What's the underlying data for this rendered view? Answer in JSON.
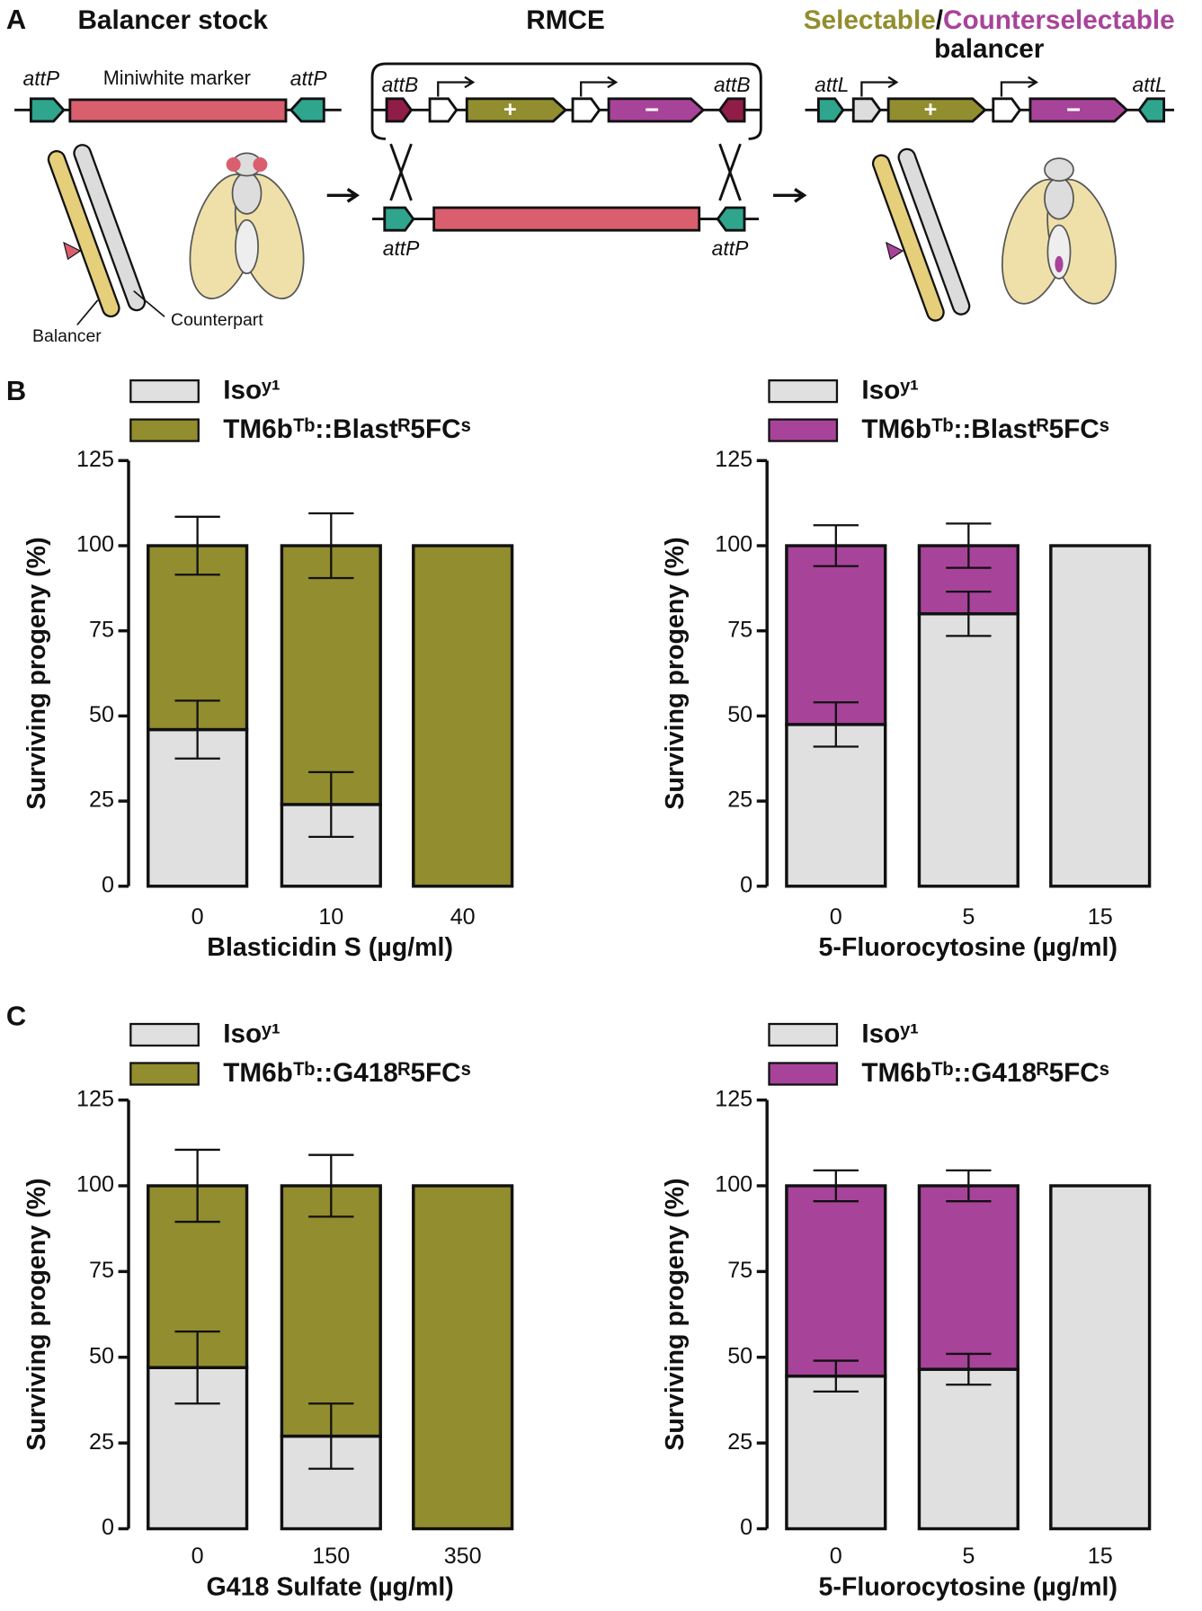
{
  "diagram": {
    "panel": "A",
    "col1_title": "Balancer stock",
    "col2_title": "RMCE",
    "col3_title_a": "Selectable",
    "col3_title_sep": "/",
    "col3_title_b": "Counterselectable",
    "col3_title_c": "balancer",
    "left_attp_1": "attP",
    "left_marker": "Miniwhite marker",
    "left_attp_2": "attP",
    "rmce_attb_1": "attB",
    "rmce_attb_2": "attB",
    "rmce_attp_1": "attP",
    "rmce_attp_2": "attP",
    "plus": "+",
    "minus": "−",
    "right_attl_1": "attL",
    "right_attl_2": "attL",
    "balancer_label": "Balancer",
    "counterpart_label": "Counterpart"
  },
  "chart_data": [
    {
      "type": "bar",
      "panel": "B",
      "xlabel": "Blasticidin S (µg/ml)",
      "ylabel": "Surviving progeny (%)",
      "categories": [
        "0",
        "10",
        "40"
      ],
      "series": [
        {
          "name": "Isoʸ¹",
          "color": "#e0e0e0",
          "values": [
            46,
            24,
            0
          ],
          "errors": [
            8.5,
            9.5,
            null
          ]
        },
        {
          "name": "TM6bᵀᵇ::Blastᴿ5FCˢ",
          "color": "#928d2e",
          "values": [
            54,
            76,
            100
          ],
          "errors": [
            8.5,
            9.5,
            null
          ]
        }
      ],
      "ylim": [
        0,
        125
      ],
      "yticks": [
        0,
        25,
        50,
        75,
        100,
        125
      ],
      "stacked": true
    },
    {
      "type": "bar",
      "xlabel": "5-Fluorocytosine (µg/ml)",
      "ylabel": "Surviving progeny (%)",
      "categories": [
        "0",
        "5",
        "15"
      ],
      "series": [
        {
          "name": "Isoʸ¹",
          "color": "#e0e0e0",
          "values": [
            47.5,
            80,
            100
          ],
          "errors": [
            6.5,
            6.5,
            null
          ]
        },
        {
          "name": "TM6bᵀᵇ::Blastᴿ5FCˢ",
          "color": "#a8439a",
          "values": [
            52.5,
            20,
            0
          ],
          "errors": [
            6,
            6.5,
            null
          ]
        }
      ],
      "ylim": [
        0,
        125
      ],
      "yticks": [
        0,
        25,
        50,
        75,
        100,
        125
      ],
      "stacked": true
    },
    {
      "type": "bar",
      "panel": "C",
      "xlabel": "G418 Sulfate (µg/ml)",
      "ylabel": "Surviving progeny (%)",
      "categories": [
        "0",
        "150",
        "350"
      ],
      "series": [
        {
          "name": "Isoʸ¹",
          "color": "#e0e0e0",
          "values": [
            47,
            27,
            0
          ],
          "errors": [
            10.5,
            9.5,
            null
          ]
        },
        {
          "name": "TM6bᵀᵇ::G418ᴿ5FCˢ",
          "color": "#928d2e",
          "values": [
            53,
            73,
            100
          ],
          "errors": [
            10.5,
            9,
            null
          ]
        }
      ],
      "ylim": [
        0,
        125
      ],
      "yticks": [
        0,
        25,
        50,
        75,
        100,
        125
      ],
      "stacked": true
    },
    {
      "type": "bar",
      "xlabel": "5-Fluorocytosine (µg/ml)",
      "ylabel": "Surviving progeny (%)",
      "categories": [
        "0",
        "5",
        "15"
      ],
      "series": [
        {
          "name": "Isoʸ¹",
          "color": "#e0e0e0",
          "values": [
            44.5,
            46.5,
            100
          ],
          "errors": [
            4.5,
            4.5,
            null
          ]
        },
        {
          "name": "TM6bᵀᵇ::G418ᴿ5FCˢ",
          "color": "#a8439a",
          "values": [
            55.5,
            53.5,
            0
          ],
          "errors": [
            4.5,
            4.5,
            null
          ]
        }
      ],
      "ylim": [
        0,
        125
      ],
      "yticks": [
        0,
        25,
        50,
        75,
        100,
        125
      ],
      "stacked": true
    }
  ]
}
